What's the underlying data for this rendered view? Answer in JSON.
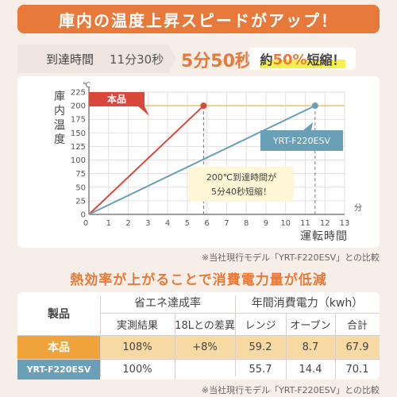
{
  "header": {
    "title": "庫内の温度上昇スピードがアップ！"
  },
  "speed": {
    "label": "到達時間",
    "old_time": "11分30秒",
    "new_time": "5分50秒",
    "badge_pre": "約",
    "badge_pct": "50%",
    "badge_post": "短縮！"
  },
  "chart_data": {
    "type": "line",
    "ylabel_unit": "℃",
    "ylabel": "庫内温度",
    "xlabel_unit": "分",
    "xlabel": "運転時間",
    "xlim": [
      0,
      13
    ],
    "ylim": [
      0,
      225
    ],
    "x_ticks": [
      0,
      1,
      2,
      3,
      4,
      5,
      6,
      7,
      8,
      9,
      10,
      11,
      12,
      13
    ],
    "y_ticks": [
      0,
      25,
      50,
      75,
      100,
      125,
      150,
      175,
      200,
      225
    ],
    "series": [
      {
        "name": "本品",
        "color": "#d9483b",
        "x": [
          0,
          5.83
        ],
        "y": [
          0,
          200
        ]
      },
      {
        "name": "YRT-F220ESV",
        "color": "#6a9fb8",
        "x": [
          0,
          11.5
        ],
        "y": [
          0,
          200
        ]
      }
    ],
    "reference_line": {
      "y": 200,
      "color": "#f3c55b"
    },
    "annotation": {
      "line1": "200℃到達時間が",
      "line2": "5分40秒短縮！"
    },
    "callout_new": "本品",
    "callout_old": "YRT-F220ESV"
  },
  "chart_note": "※当社現行モデル「YRT-F220ESV」との比較",
  "efficiency": {
    "title": "熱効率が上がることで消費電力量が低減",
    "col_product": "製品",
    "group1": "省エネ達成率",
    "group2": "年間消費電力（kwh）",
    "sub1": "実測結果",
    "sub2": "18Lとの差異",
    "sub3": "レンジ",
    "sub4": "オーブン",
    "sub5": "合計",
    "rows": [
      {
        "name": "本品",
        "measured": "108%",
        "diff": "+8%",
        "range": "59.2",
        "oven": "8.7",
        "total": "67.9"
      },
      {
        "name": "YRT-F220ESV",
        "measured": "100%",
        "diff": "",
        "range": "55.7",
        "oven": "14.4",
        "total": "70.1"
      }
    ]
  },
  "footnote": "※当社現行モデル「YRT-F220ESV」との比較"
}
